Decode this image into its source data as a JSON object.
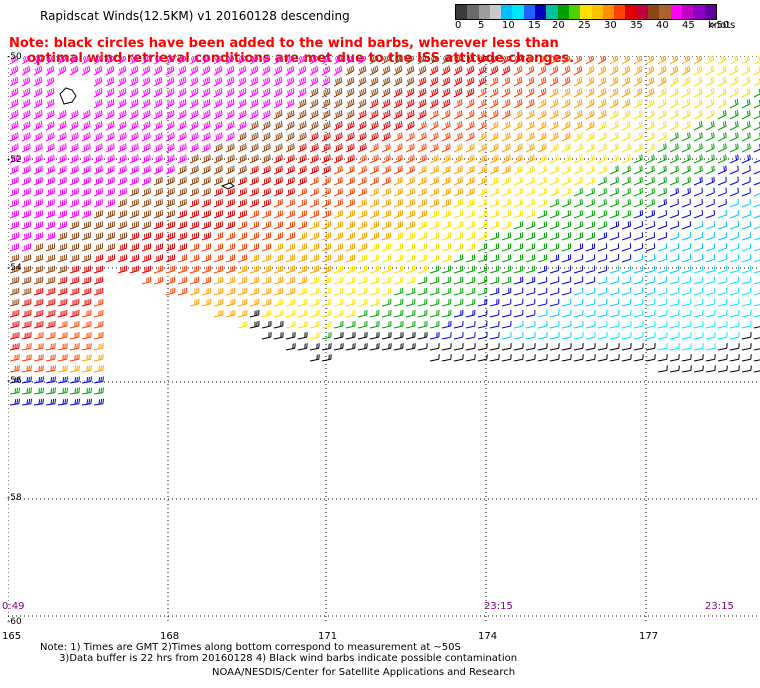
{
  "title": "Rapidscat Winds(12.5KM) v1 20160128 descending",
  "note_line1": "Note: black circles have been added to the wind barbs, wherever less than",
  "note_line2": "    optimal wind retrieval conditions are met due to the ISS attitude changes.",
  "legend": {
    "labels": [
      "0",
      "5",
      "10",
      "15",
      "20",
      "25",
      "30",
      "35",
      "40",
      "45",
      ">50"
    ],
    "unit": "knots",
    "colors": [
      "#3a3a3a",
      "#6a6a6a",
      "#9c9c9c",
      "#c8c8c8",
      "#00bfff",
      "#00e5ff",
      "#2060ff",
      "#0000c0",
      "#00c0a0",
      "#00a000",
      "#50d000",
      "#ffe000",
      "#ffc000",
      "#ff9000",
      "#ff4000",
      "#e00000",
      "#c00040",
      "#8b4513",
      "#b06030",
      "#ff00ff",
      "#c000c0",
      "#9000c0",
      "#6000a0"
    ]
  },
  "lat_labels": [
    "-50",
    "-52",
    "-54",
    "-56",
    "-58",
    "-60"
  ],
  "lon_labels": [
    "165",
    "168",
    "171",
    "174",
    "177"
  ],
  "time_labels": [
    "0:49",
    "23:15",
    "23:15"
  ],
  "footer": {
    "line1": "Note: 1) Times are GMT 2)Times along bottom correspond to measurement at ~50S",
    "line2": "      3)Data buffer is 22 hrs from 20160128 4) Black wind barbs indicate possible contamination",
    "line3": "NOAA/NESDIS/Center for Satellite Applications and Research"
  }
}
